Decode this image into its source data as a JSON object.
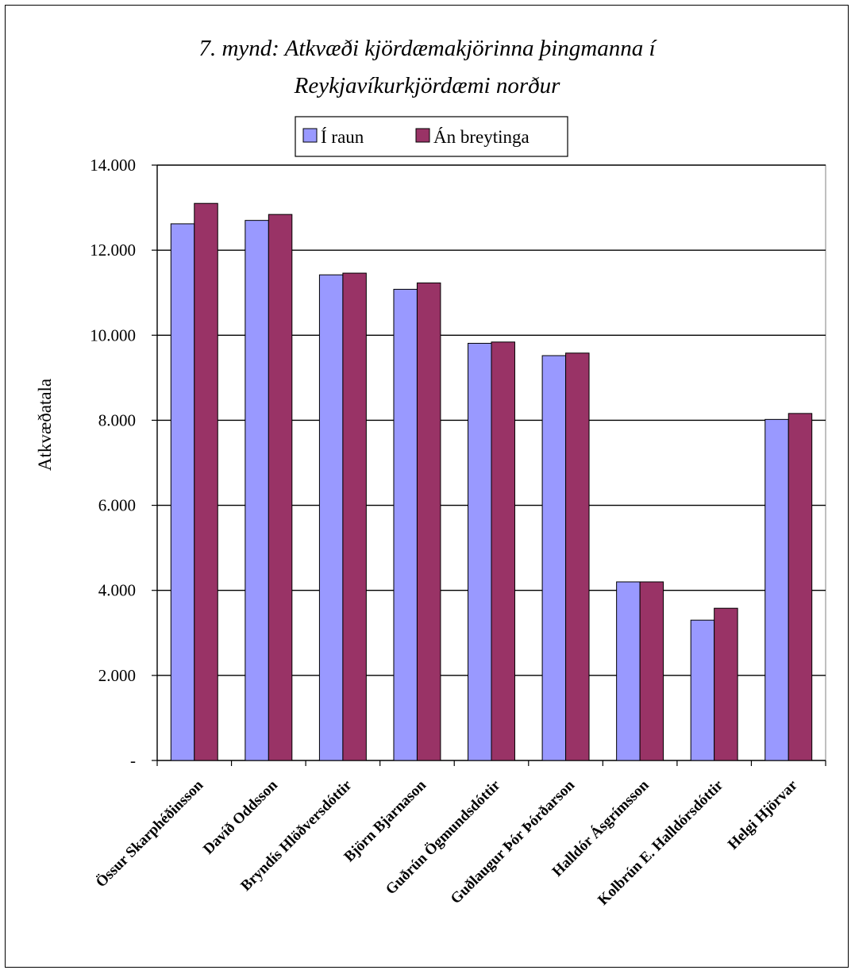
{
  "chart_data": {
    "type": "bar",
    "title_lines": [
      "7. mynd: Atkvæði kjördæmakjörinna þingmanna í",
      "Reykjavíkurkjördæmi norður"
    ],
    "ylabel": "Atkvæðatala",
    "xlabel": "",
    "ylim": [
      0,
      14000
    ],
    "yticks": [
      0,
      2000,
      4000,
      6000,
      8000,
      10000,
      12000,
      14000
    ],
    "ytick_labels": [
      "-",
      "2.000",
      "4.000",
      "6.000",
      "8.000",
      "10.000",
      "12.000",
      "14.000"
    ],
    "grid": true,
    "legend_position": "top-center",
    "categories": [
      "Össur Skarphéðinsson",
      "Davíð Oddsson",
      "Bryndís Hlöðversdóttir",
      "Björn Bjarnason",
      "Guðrún Ögmundsdóttir",
      "Guðlaugur Þór Þórðarson",
      "Halldór Ásgrímsson",
      "Kolbrún E. Halldórsdóttir",
      "Helgi Hjörvar"
    ],
    "series": [
      {
        "name": "Í raun",
        "color": "#9999ff",
        "values": [
          12620,
          12700,
          11420,
          11080,
          9810,
          9520,
          4200,
          3300,
          8020
        ]
      },
      {
        "name": "Án breytinga",
        "color": "#993366",
        "values": [
          13100,
          12840,
          11460,
          11230,
          9840,
          9580,
          4200,
          3580,
          8160
        ]
      }
    ]
  }
}
